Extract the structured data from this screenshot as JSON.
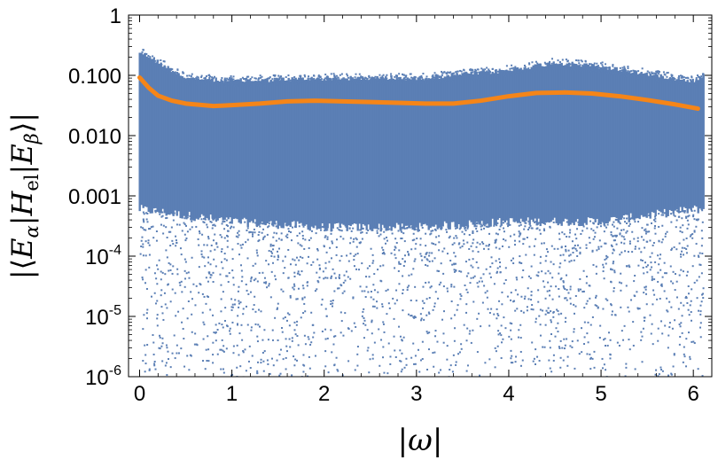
{
  "chart_data": {
    "type": "scatter",
    "title": "",
    "xlabel": "|ω|",
    "ylabel_parts": {
      "open": "|⟨",
      "e1": "E",
      "sub1": "α",
      "bar1": "|",
      "h": "H",
      "sub_h": "el",
      "bar2": "|",
      "e2": "E",
      "sub2": "β",
      "close": "⟩|"
    },
    "x_scale": "linear",
    "y_scale": "log",
    "xlim": [
      -0.12,
      6.2
    ],
    "ylim": [
      1e-06,
      1
    ],
    "x_ticks": [
      {
        "value": 0,
        "label": "0"
      },
      {
        "value": 1,
        "label": "1"
      },
      {
        "value": 2,
        "label": "2"
      },
      {
        "value": 3,
        "label": "3"
      },
      {
        "value": 4,
        "label": "4"
      },
      {
        "value": 5,
        "label": "5"
      },
      {
        "value": 6,
        "label": "6"
      }
    ],
    "y_ticks": [
      {
        "value": 1,
        "label": "1",
        "exp": ""
      },
      {
        "value": 0.1,
        "label": "0.100",
        "exp": ""
      },
      {
        "value": 0.01,
        "label": "0.010",
        "exp": ""
      },
      {
        "value": 0.001,
        "label": "0.001",
        "exp": ""
      },
      {
        "value": 0.0001,
        "label": "10",
        "exp": "-4"
      },
      {
        "value": 1e-05,
        "label": "10",
        "exp": "-5"
      },
      {
        "value": 1e-06,
        "label": "10",
        "exp": "-6"
      }
    ],
    "series": [
      {
        "kind": "scatter",
        "color": "#5b7fb5",
        "description_x_range": [
          0,
          6.1
        ],
        "band_upper": [
          [
            0,
            0.3
          ],
          [
            0.5,
            0.11
          ],
          [
            1,
            0.1
          ],
          [
            2,
            0.11
          ],
          [
            3,
            0.11
          ],
          [
            4,
            0.15
          ],
          [
            4.5,
            0.2
          ],
          [
            5,
            0.17
          ],
          [
            5.5,
            0.13
          ],
          [
            6,
            0.1
          ],
          [
            6.1,
            0.12
          ]
        ],
        "band_lower": [
          [
            0,
            0.0004
          ],
          [
            1,
            0.00025
          ],
          [
            2,
            0.0002
          ],
          [
            3,
            0.0002
          ],
          [
            4,
            0.00025
          ],
          [
            5,
            0.00025
          ],
          [
            6,
            0.0004
          ],
          [
            6.1,
            0.0004
          ]
        ]
      },
      {
        "kind": "line",
        "color": "#f58518",
        "points": [
          [
            0.0,
            0.092
          ],
          [
            0.1,
            0.062
          ],
          [
            0.2,
            0.046
          ],
          [
            0.35,
            0.038
          ],
          [
            0.5,
            0.034
          ],
          [
            0.8,
            0.031
          ],
          [
            1.0,
            0.032
          ],
          [
            1.3,
            0.034
          ],
          [
            1.6,
            0.037
          ],
          [
            1.9,
            0.038
          ],
          [
            2.2,
            0.037
          ],
          [
            2.5,
            0.036
          ],
          [
            2.8,
            0.035
          ],
          [
            3.1,
            0.034
          ],
          [
            3.4,
            0.034
          ],
          [
            3.7,
            0.038
          ],
          [
            4.0,
            0.045
          ],
          [
            4.3,
            0.051
          ],
          [
            4.6,
            0.052
          ],
          [
            4.9,
            0.05
          ],
          [
            5.2,
            0.045
          ],
          [
            5.5,
            0.039
          ],
          [
            5.8,
            0.033
          ],
          [
            6.05,
            0.028
          ]
        ]
      }
    ]
  }
}
